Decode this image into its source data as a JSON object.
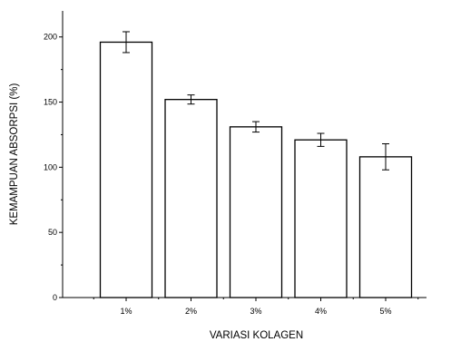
{
  "chart_data": {
    "type": "bar",
    "title": "",
    "xlabel": "VARIASI KOLAGEN",
    "ylabel": "KEMAMPUAN ABSORPSI (%)",
    "categories": [
      "1%",
      "2%",
      "3%",
      "4%",
      "5%"
    ],
    "values": [
      196,
      152,
      131,
      121,
      108
    ],
    "errors": [
      8,
      3.5,
      4,
      5,
      10
    ],
    "ylim": [
      0,
      220
    ],
    "yticks": [
      0,
      50,
      100,
      150,
      200
    ],
    "ytick_labels": [
      "0",
      "50",
      "100",
      "150",
      "200"
    ],
    "grid": false,
    "bar_fill": "#ffffff",
    "bar_stroke": "#000000"
  }
}
